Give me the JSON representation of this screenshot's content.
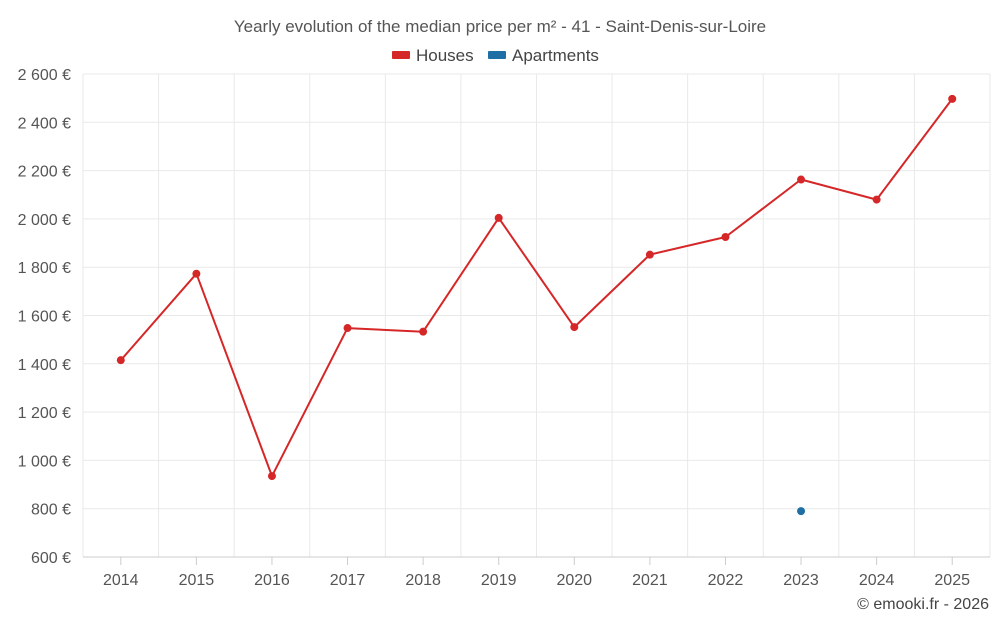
{
  "chart_data": {
    "type": "line",
    "title": "Yearly evolution of the median price per m² - 41 - Saint-Denis-sur-Loire",
    "xlabel": "",
    "ylabel": "",
    "categories": [
      "2014",
      "2015",
      "2016",
      "2017",
      "2018",
      "2019",
      "2020",
      "2021",
      "2022",
      "2023",
      "2024",
      "2025"
    ],
    "ylim": [
      600,
      2600
    ],
    "yticks": [
      600,
      800,
      1000,
      1200,
      1400,
      1600,
      1800,
      2000,
      2200,
      2400,
      2600
    ],
    "ytick_labels": [
      "600 €",
      "800 €",
      "1 000 €",
      "1 200 €",
      "1 400 €",
      "1 600 €",
      "1 800 €",
      "2 000 €",
      "2 200 €",
      "2 400 €",
      "2 600 €"
    ],
    "grid": true,
    "legend_position": "top-center",
    "series": [
      {
        "name": "Houses",
        "color": "#d62728",
        "values": [
          1415,
          1773,
          935,
          1548,
          1533,
          2004,
          1552,
          1852,
          1925,
          2163,
          2080,
          2497
        ]
      },
      {
        "name": "Apartments",
        "color": "#1f6fa5",
        "values": [
          null,
          null,
          null,
          null,
          null,
          null,
          null,
          null,
          null,
          790,
          null,
          null
        ]
      }
    ]
  },
  "credit": "© emooki.fr - 2026"
}
